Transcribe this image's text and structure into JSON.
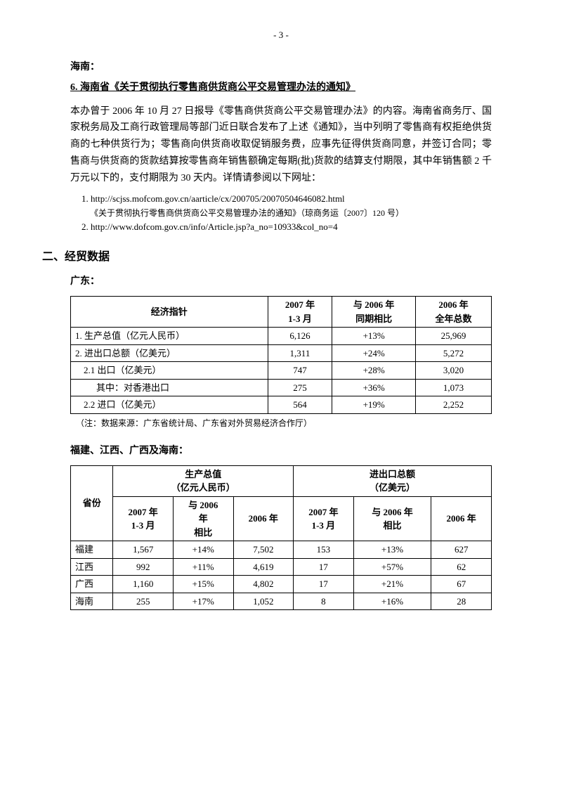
{
  "page_number": "- 3 -",
  "hainan_section": {
    "region_label": "海南：",
    "item_heading": "6. 海南省《关于贯彻执行零售商供货商公平交易管理办法的通知》",
    "paragraph": "本办曾于 2006 年 10 月 27 日报导《零售商供货商公平交易管理办法》的内容。海南省商务厅、国家税务局及工商行政管理局等部门近日联合发布了上述《通知》，当中列明了零售商有权拒绝供货商的七种供货行为；零售商向供货商收取促销服务费，应事先征得供货商同意，并签订合同；零售商与供货商的货款结算按零售商年销售额确定每期(批)货款的结算支付期限，其中年销售额 2 千万元以下的，支付期限为 30 天内。详情请参阅以下网址：",
    "ref1": "1. http://scjss.mofcom.gov.cn/aarticle/cx/200705/20070504646082.html",
    "ref1_note": "《关于贯彻执行零售商供货商公平交易管理办法的通知》（琼商务运〔2007〕120 号）",
    "ref2": "2. http://www.dofcom.gov.cn/info/Article.jsp?a_no=10933&col_no=4"
  },
  "main_section_title": "二、经贸数据",
  "guangdong": {
    "label": "广东：",
    "table": {
      "headers": [
        "经济指针",
        "2007 年\n1-3 月",
        "与 2006 年\n同期相比",
        "2006 年\n全年总数"
      ],
      "rows": [
        [
          "1. 生产总值（亿元人民币）",
          "6,126",
          "+13%",
          "25,969"
        ],
        [
          "2. 进出口总额（亿美元）",
          "1,311",
          "+24%",
          "5,272"
        ],
        [
          "2.1 出口（亿美元）",
          "747",
          "+28%",
          "3,020"
        ],
        [
          "其中：对香港出口",
          "275",
          "+36%",
          "1,073"
        ],
        [
          "2.2 进口（亿美元）",
          "564",
          "+19%",
          "2,252"
        ]
      ],
      "row_indents": [
        0,
        0,
        1,
        2,
        1
      ]
    },
    "note": "（注：数据来源：广东省统计局、广东省对外贸易经济合作厅）"
  },
  "others": {
    "label": "福建、江西、广西及海南：",
    "table": {
      "group_headers": [
        "省份",
        "生产总值\n（亿元人民币）",
        "进出口总额\n（亿美元）"
      ],
      "sub_headers": [
        "2007 年\n1-3 月",
        "与 2006\n年\n相比",
        "2006 年",
        "2007 年\n1-3 月",
        "与 2006 年\n相比",
        "2006 年"
      ],
      "rows": [
        [
          "福建",
          "1,567",
          "+14%",
          "7,502",
          "153",
          "+13%",
          "627"
        ],
        [
          "江西",
          "992",
          "+11%",
          "4,619",
          "17",
          "+57%",
          "62"
        ],
        [
          "广西",
          "1,160",
          "+15%",
          "4,802",
          "17",
          "+21%",
          "67"
        ],
        [
          "海南",
          "255",
          "+17%",
          "1,052",
          "8",
          "+16%",
          "28"
        ]
      ]
    }
  }
}
